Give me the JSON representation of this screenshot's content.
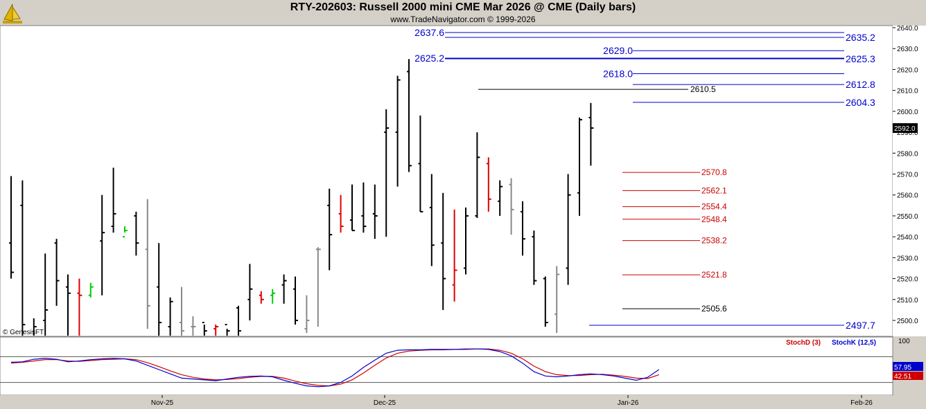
{
  "header": {
    "title": "RTY-202603:  Russell 2000 mini CME Mar 2026 @ CME  (Daily bars)",
    "subtitle": "www.TradeNavigator.com © 1999-2026",
    "watermark": "© GenesisFT"
  },
  "chart_data": {
    "type": "ohlc-bar",
    "price_axis": {
      "ylim": [
        2496,
        2642
      ],
      "ticks": [
        "2640.0",
        "2630.0",
        "2620.0",
        "2610.0",
        "2600.0",
        "2590.0",
        "2580.0",
        "2570.0",
        "2560.0",
        "2550.0",
        "2540.0",
        "2530.0",
        "2520.0",
        "2510.0",
        "2500.0"
      ],
      "last_price": "2592.0"
    },
    "date_axis": {
      "labels": [
        "Nov-25",
        "Dec-25",
        "Jan-26",
        "Feb-26"
      ]
    },
    "bar_colors": {
      "up": "#000000",
      "down_red": "#dd0000",
      "gray": "#888888",
      "green": "#00cc00"
    },
    "bars": [
      {
        "o": 2537,
        "h": 2569,
        "l": 2520,
        "c": 2523,
        "col": "k"
      },
      {
        "o": 2555,
        "h": 2567,
        "l": 2488,
        "c": 2498,
        "col": "k"
      },
      {
        "o": 2492,
        "h": 2501,
        "l": 2470,
        "c": 2497,
        "col": "k"
      },
      {
        "o": 2500,
        "h": 2532,
        "l": 2478,
        "c": 2505,
        "col": "k"
      },
      {
        "o": 2537,
        "h": 2539,
        "l": 2507,
        "c": 2519,
        "col": "k"
      },
      {
        "o": 2516,
        "h": 2522,
        "l": 2488,
        "c": 2513,
        "col": "k"
      },
      {
        "o": 2513,
        "h": 2520,
        "l": 2488,
        "c": 2512,
        "col": "r"
      },
      {
        "o": 2512,
        "h": 2518,
        "l": 2511,
        "c": 2516,
        "col": "g"
      },
      {
        "o": 2538,
        "h": 2560,
        "l": 2512,
        "c": 2542,
        "col": "k"
      },
      {
        "o": 2545,
        "h": 2573,
        "l": 2542,
        "c": 2551,
        "col": "k"
      },
      {
        "o": 2540,
        "h": 2545,
        "l": 2542,
        "c": 2543,
        "col": "g"
      },
      {
        "o": 2550,
        "h": 2552,
        "l": 2531,
        "c": 2537,
        "col": "k"
      },
      {
        "o": 2534,
        "h": 2558,
        "l": 2496,
        "c": 2507,
        "col": "gr"
      },
      {
        "o": 2516,
        "h": 2537,
        "l": 2488,
        "c": 2499,
        "col": "k"
      },
      {
        "o": 2497,
        "h": 2511,
        "l": 2490,
        "c": 2509,
        "col": "k"
      },
      {
        "o": 2499,
        "h": 2516,
        "l": 2490,
        "c": 2495,
        "col": "gr"
      },
      {
        "o": 2497,
        "h": 2502,
        "l": 2490,
        "c": 2497,
        "col": "gr"
      },
      {
        "o": 2499,
        "h": 2498,
        "l": 2490,
        "c": 2495,
        "col": "k"
      },
      {
        "o": 2496,
        "h": 2498,
        "l": 2490,
        "c": 2497,
        "col": "r"
      },
      {
        "o": 2498,
        "h": 2496,
        "l": 2490,
        "c": 2495,
        "col": "k"
      },
      {
        "o": 2506,
        "h": 2507,
        "l": 2490,
        "c": 2495,
        "col": "k"
      },
      {
        "o": 2510,
        "h": 2527,
        "l": 2500,
        "c": 2515,
        "col": "k"
      },
      {
        "o": 2512,
        "h": 2514,
        "l": 2508,
        "c": 2510,
        "col": "r"
      },
      {
        "o": 2512,
        "h": 2515,
        "l": 2508,
        "c": 2513,
        "col": "g"
      },
      {
        "o": 2517,
        "h": 2522,
        "l": 2508,
        "c": 2519,
        "col": "k"
      },
      {
        "o": 2515,
        "h": 2521,
        "l": 2498,
        "c": 2500,
        "col": "k"
      },
      {
        "o": 2496,
        "h": 2512,
        "l": 2494,
        "c": 2500,
        "col": "gr"
      },
      {
        "o": 2534,
        "h": 2535,
        "l": 2497,
        "c": 2534,
        "col": "gr"
      },
      {
        "o": 2555,
        "h": 2563,
        "l": 2524,
        "c": 2541,
        "col": "k"
      },
      {
        "o": 2551,
        "h": 2560,
        "l": 2542,
        "c": 2545,
        "col": "r"
      },
      {
        "o": 2548,
        "h": 2565,
        "l": 2543,
        "c": 2543,
        "col": "k"
      },
      {
        "o": 2550,
        "h": 2566,
        "l": 2542,
        "c": 2545,
        "col": "k"
      },
      {
        "o": 2551,
        "h": 2565,
        "l": 2539,
        "c": 2550,
        "col": "k"
      },
      {
        "o": 2590,
        "h": 2601,
        "l": 2540,
        "c": 2592,
        "col": "k"
      },
      {
        "o": 2590,
        "h": 2617,
        "l": 2564,
        "c": 2615,
        "col": "k"
      },
      {
        "o": 2619,
        "h": 2625,
        "l": 2571,
        "c": 2574,
        "col": "k"
      },
      {
        "o": 2575,
        "h": 2598,
        "l": 2552,
        "c": 2552,
        "col": "k"
      },
      {
        "o": 2554,
        "h": 2570,
        "l": 2526,
        "c": 2536,
        "col": "k"
      },
      {
        "o": 2537,
        "h": 2561,
        "l": 2505,
        "c": 2520,
        "col": "k"
      },
      {
        "o": 2517,
        "h": 2553,
        "l": 2509,
        "c": 2524,
        "col": "r"
      },
      {
        "o": 2525,
        "h": 2554,
        "l": 2522,
        "c": 2550,
        "col": "k"
      },
      {
        "o": 2550,
        "h": 2590,
        "l": 2549,
        "c": 2578,
        "col": "k"
      },
      {
        "o": 2575,
        "h": 2578,
        "l": 2552,
        "c": 2558,
        "col": "r"
      },
      {
        "o": 2557,
        "h": 2567,
        "l": 2550,
        "c": 2564,
        "col": "k"
      },
      {
        "o": 2565,
        "h": 2568,
        "l": 2541,
        "c": 2553,
        "col": "gr"
      },
      {
        "o": 2552,
        "h": 2557,
        "l": 2531,
        "c": 2539,
        "col": "k"
      },
      {
        "o": 2540,
        "h": 2543,
        "l": 2517,
        "c": 2519,
        "col": "k"
      },
      {
        "o": 2520,
        "h": 2521,
        "l": 2497,
        "c": 2499,
        "col": "k"
      },
      {
        "o": 2503,
        "h": 2526,
        "l": 2494,
        "c": 2522,
        "col": "gr"
      },
      {
        "o": 2525,
        "h": 2570,
        "l": 2517,
        "c": 2560,
        "col": "k"
      },
      {
        "o": 2561,
        "h": 2597,
        "l": 2550,
        "c": 2596,
        "col": "k"
      },
      {
        "o": 2597,
        "h": 2604,
        "l": 2574,
        "c": 2592,
        "col": "k"
      }
    ],
    "levels": [
      {
        "label": "2637.6",
        "value": 2637.6,
        "color": "#0000cc",
        "side": "left"
      },
      {
        "label": "2635.2",
        "value": 2635.2,
        "color": "#0000cc",
        "side": "right"
      },
      {
        "label": "2629.0",
        "value": 2629.0,
        "color": "#0000cc",
        "side": "mid"
      },
      {
        "label": "2625.2",
        "value": 2625.2,
        "color": "#0000cc",
        "side": "left"
      },
      {
        "label": "2625.3",
        "value": 2625.3,
        "color": "#0000cc",
        "side": "right"
      },
      {
        "label": "2618.0",
        "value": 2618.0,
        "color": "#0000cc",
        "side": "mid"
      },
      {
        "label": "2612.8",
        "value": 2612.8,
        "color": "#0000cc",
        "side": "right"
      },
      {
        "label": "2610.5",
        "value": 2610.5,
        "color": "#000000",
        "side": "mid"
      },
      {
        "label": "2604.3",
        "value": 2604.3,
        "color": "#0000cc",
        "side": "right"
      },
      {
        "label": "2570.8",
        "value": 2570.8,
        "color": "#cc0000",
        "side": "mid"
      },
      {
        "label": "2562.1",
        "value": 2562.1,
        "color": "#cc0000",
        "side": "mid"
      },
      {
        "label": "2554.4",
        "value": 2554.4,
        "color": "#cc0000",
        "side": "mid"
      },
      {
        "label": "2548.4",
        "value": 2548.4,
        "color": "#cc0000",
        "side": "mid"
      },
      {
        "label": "2538.2",
        "value": 2538.2,
        "color": "#cc0000",
        "side": "mid"
      },
      {
        "label": "2521.8",
        "value": 2521.8,
        "color": "#cc0000",
        "side": "mid"
      },
      {
        "label": "2505.6",
        "value": 2505.6,
        "color": "#000000",
        "side": "mid"
      },
      {
        "label": "2497.7",
        "value": 2497.7,
        "color": "#0000cc",
        "side": "right"
      }
    ],
    "stochastic": {
      "label_d": "StochD (3)",
      "label_k": "StochK (12,5)",
      "axis_top_label": "100",
      "upper_level": 80,
      "lower_level": 20,
      "k_value_label": "57.95",
      "d_value_label": "42.51",
      "k_color": "#0000cc",
      "d_color": "#cc0000",
      "k": [
        67,
        68,
        74,
        76,
        74,
        68,
        70,
        73,
        75,
        76,
        75,
        70,
        60,
        50,
        40,
        30,
        28,
        26,
        24,
        28,
        32,
        34,
        35,
        33,
        25,
        18,
        12,
        10,
        12,
        20,
        35,
        55,
        72,
        88,
        95,
        96,
        96,
        97,
        97,
        97,
        98,
        98,
        97,
        92,
        82,
        65,
        45,
        35,
        33,
        35,
        38,
        40,
        38,
        35,
        30,
        25,
        32,
        50
      ],
      "d": [
        65,
        67,
        70,
        73,
        73,
        70,
        69,
        71,
        73,
        74,
        75,
        73,
        66,
        57,
        47,
        38,
        32,
        28,
        26,
        27,
        29,
        32,
        34,
        34,
        30,
        23,
        17,
        13,
        12,
        16,
        26,
        42,
        60,
        77,
        88,
        93,
        95,
        96,
        96,
        97,
        97,
        98,
        98,
        95,
        88,
        75,
        58,
        45,
        38,
        36,
        36,
        38,
        39,
        37,
        34,
        30,
        29,
        38
      ]
    }
  }
}
